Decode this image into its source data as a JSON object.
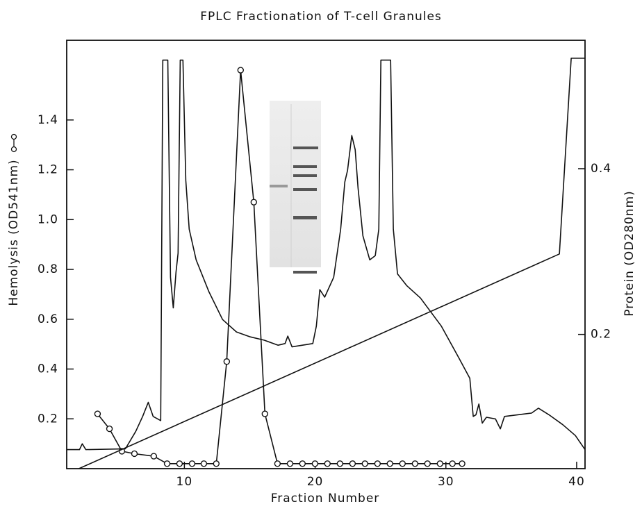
{
  "chart_data": {
    "type": "line",
    "title": "FPLC Fractionation of T-cell Granules",
    "x_label": "Fraction Number",
    "y_label": "Hemolysis (OD541nm)",
    "y2_label": "Protein (OD280nm)",
    "xlim": [
      1,
      40.64
    ],
    "ylim": [
      0,
      1.72
    ],
    "y2lim": [
      0.038,
      0.555
    ],
    "xticks": [
      10,
      20,
      30,
      40
    ],
    "yticks": [
      0.2,
      0.4,
      0.6,
      0.8,
      {
        "value": 1,
        "label": "1.0"
      },
      1.2,
      1.4
    ],
    "y2ticks": [
      0.2,
      0.4
    ],
    "series": [
      {
        "axis": "y",
        "marker": "circle",
        "color": "#111",
        "x": [
          3.36,
          4.27,
          5.22,
          6.18,
          7.66,
          8.68,
          9.63,
          10.59,
          11.49,
          12.44,
          13.24,
          14.3,
          15.31,
          16.16,
          17.12,
          18.08,
          19.03,
          19.99,
          20.94,
          21.9,
          22.86,
          23.81,
          24.77,
          25.72,
          26.68,
          27.64,
          28.59,
          29.55,
          30.5,
          31.24
        ],
        "values": [
          0.22,
          0.16,
          0.07,
          0.06,
          0.05,
          0.02,
          0.02,
          0.02,
          0.02,
          0.02,
          0.43,
          1.6,
          1.07,
          0.22,
          0.02,
          0.02,
          0.02,
          0.02,
          0.02,
          0.02,
          0.02,
          0.02,
          0.02,
          0.02,
          0.02,
          0.02,
          0.02,
          0.02,
          0.02,
          0.02
        ]
      },
      {
        "axis": "y2",
        "color": "#111",
        "x": [
          1.03,
          1.98,
          2.19,
          2.46,
          5.49,
          6.28,
          6.81,
          7.24,
          7.61,
          8.19,
          8.35,
          8.73,
          8.94,
          9.15,
          9.36,
          9.52,
          9.68,
          9.89,
          10.11,
          10.37,
          10.9,
          11.86,
          12.92,
          13.98,
          15.04,
          16.11,
          17.17,
          17.7,
          17.91,
          18.23,
          19.82,
          20.09,
          20.36,
          20.73,
          21.42,
          21.95,
          22.27,
          22.48,
          22.8,
          23.06,
          23.28,
          23.65,
          24.18,
          24.6,
          24.87,
          25.03,
          25.77,
          25.98,
          26.3,
          27.0,
          28.05,
          29.65,
          30.98,
          31.83,
          32.09,
          32.3,
          32.52,
          32.78,
          33.1,
          33.79,
          34.16,
          34.48,
          35.49,
          36.55,
          37.08,
          37.88,
          38.94,
          39.9,
          40.64
        ],
        "values": [
          0.061,
          0.061,
          0.068,
          0.061,
          0.062,
          0.083,
          0.101,
          0.118,
          0.101,
          0.096,
          0.531,
          0.531,
          0.269,
          0.232,
          0.275,
          0.298,
          0.531,
          0.531,
          0.386,
          0.327,
          0.29,
          0.252,
          0.218,
          0.203,
          0.197,
          0.193,
          0.187,
          0.189,
          0.198,
          0.185,
          0.189,
          0.21,
          0.254,
          0.245,
          0.269,
          0.327,
          0.384,
          0.398,
          0.44,
          0.423,
          0.377,
          0.319,
          0.29,
          0.295,
          0.327,
          0.531,
          0.531,
          0.327,
          0.273,
          0.259,
          0.244,
          0.21,
          0.172,
          0.147,
          0.101,
          0.103,
          0.116,
          0.093,
          0.1,
          0.098,
          0.086,
          0.101,
          0.103,
          0.105,
          0.111,
          0.103,
          0.091,
          0.078,
          0.061
        ]
      },
      {
        "axis": "y",
        "color": "#111",
        "x": [
          1.93,
          38.68,
          39.58,
          40.64
        ],
        "values": [
          0,
          0.862,
          1.648,
          1.648
        ]
      }
    ]
  }
}
